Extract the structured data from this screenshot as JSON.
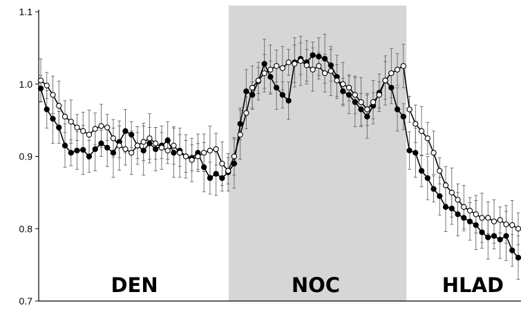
{
  "chart_data": {
    "type": "line",
    "title": "",
    "xlabel": "",
    "ylabel": "",
    "ylim": [
      0.7,
      1.1
    ],
    "yticks": [
      "0.7",
      "0.8",
      "0.9",
      "1.0",
      "1.1"
    ],
    "x_count": 80,
    "shaded_region": {
      "start": 31.1,
      "end": 60.5,
      "color": "#d6d6d6"
    },
    "regions": [
      {
        "label": "DEN",
        "center": 15.5
      },
      {
        "label": "NOC",
        "center": 45.5
      },
      {
        "label": "HLAD",
        "center": 71.5
      }
    ],
    "series": [
      {
        "marker": "filled",
        "color": "#000000",
        "values": [
          0.994,
          0.965,
          0.952,
          0.94,
          0.915,
          0.905,
          0.908,
          0.909,
          0.9,
          0.91,
          0.918,
          0.912,
          0.905,
          0.92,
          0.935,
          0.93,
          0.915,
          0.908,
          0.918,
          0.91,
          0.915,
          0.922,
          0.905,
          0.908,
          0.9,
          0.898,
          0.905,
          0.885,
          0.87,
          0.876,
          0.87,
          0.878,
          0.89,
          0.945,
          0.99,
          0.985,
          1.004,
          1.028,
          1.01,
          0.995,
          0.985,
          0.977,
          1.03,
          1.035,
          1.03,
          1.04,
          1.038,
          1.035,
          1.026,
          1.01,
          0.99,
          0.985,
          0.975,
          0.965,
          0.955,
          0.97,
          0.988,
          1.005,
          0.995,
          0.965,
          0.955,
          0.908,
          0.905,
          0.88,
          0.87,
          0.855,
          0.845,
          0.83,
          0.828,
          0.82,
          0.815,
          0.81,
          0.805,
          0.795,
          0.788,
          0.79,
          0.785,
          0.79,
          0.77,
          0.76
        ]
      },
      {
        "marker": "open",
        "color": "#000000",
        "values": [
          1.005,
          0.998,
          0.985,
          0.97,
          0.955,
          0.948,
          0.94,
          0.935,
          0.93,
          0.938,
          0.942,
          0.94,
          0.925,
          0.915,
          0.91,
          0.905,
          0.915,
          0.92,
          0.925,
          0.918,
          0.912,
          0.908,
          0.915,
          0.905,
          0.9,
          0.895,
          0.9,
          0.905,
          0.908,
          0.91,
          0.89,
          0.88,
          0.9,
          0.93,
          0.96,
          0.995,
          1.005,
          1.015,
          1.02,
          1.025,
          1.022,
          1.03,
          1.028,
          1.032,
          1.026,
          1.02,
          1.025,
          1.015,
          1.018,
          1.005,
          1.0,
          0.995,
          0.985,
          0.975,
          0.965,
          0.975,
          0.985,
          1.005,
          1.015,
          1.02,
          1.025,
          0.965,
          0.945,
          0.935,
          0.925,
          0.905,
          0.88,
          0.86,
          0.85,
          0.84,
          0.83,
          0.825,
          0.82,
          0.815,
          0.815,
          0.81,
          0.812,
          0.806,
          0.805,
          0.8
        ]
      }
    ]
  }
}
